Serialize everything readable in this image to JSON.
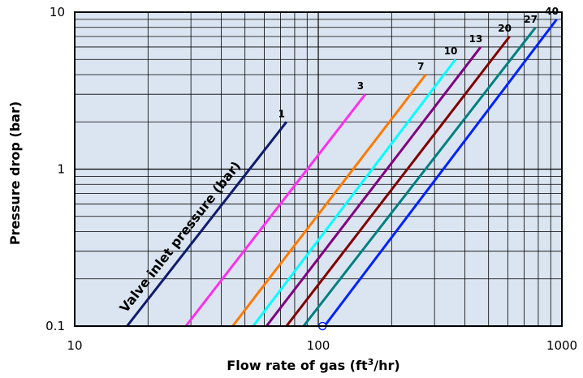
{
  "chart_data": {
    "type": "line",
    "xscale": "log",
    "yscale": "log",
    "xlim": [
      10,
      1000
    ],
    "ylim": [
      0.1,
      10
    ],
    "grid": true,
    "xlabel_main": "Flow rate of gas (ft",
    "xlabel_sup": "3",
    "xlabel_end": "/hr)",
    "ylabel": "Pressure drop (bar)",
    "annotation": "Valve inlet pressure (bar)",
    "x_ticks": [
      {
        "value": 10,
        "label": "10"
      },
      {
        "value": 100,
        "label": "100"
      },
      {
        "value": 1000,
        "label": "1000"
      }
    ],
    "y_ticks": [
      {
        "value": 10,
        "label": "10"
      },
      {
        "value": 1,
        "label": "1"
      },
      {
        "value": 0.1,
        "label": "0.1"
      }
    ],
    "colors": {
      "plot_background": "#dbe5f1",
      "grid": "#000000"
    },
    "series": [
      {
        "name": "1",
        "color": "#0f1b6e",
        "x": [
          16.4,
          74
        ],
        "y": [
          0.1,
          2
        ]
      },
      {
        "name": "3",
        "color": "#ff2ff0",
        "x": [
          28.6,
          156
        ],
        "y": [
          0.1,
          3
        ]
      },
      {
        "name": "7",
        "color": "#ff7a00",
        "x": [
          44.5,
          276
        ],
        "y": [
          0.1,
          4
        ]
      },
      {
        "name": "10",
        "color": "#00ffff",
        "x": [
          54,
          366
        ],
        "y": [
          0.1,
          5
        ]
      },
      {
        "name": "13",
        "color": "#800080",
        "x": [
          61.3,
          464
        ],
        "y": [
          0.1,
          6
        ]
      },
      {
        "name": "20",
        "color": "#800000",
        "x": [
          74,
          610
        ],
        "y": [
          0.1,
          7
        ]
      },
      {
        "name": "27",
        "color": "#008080",
        "x": [
          87,
          780
        ],
        "y": [
          0.1,
          8
        ]
      },
      {
        "name": "40",
        "color": "#0022ff",
        "x": [
          106,
          952
        ],
        "y": [
          0.1,
          9
        ]
      }
    ],
    "marker": {
      "x": 104,
      "y": 0.1,
      "color": "#0022ff"
    }
  }
}
